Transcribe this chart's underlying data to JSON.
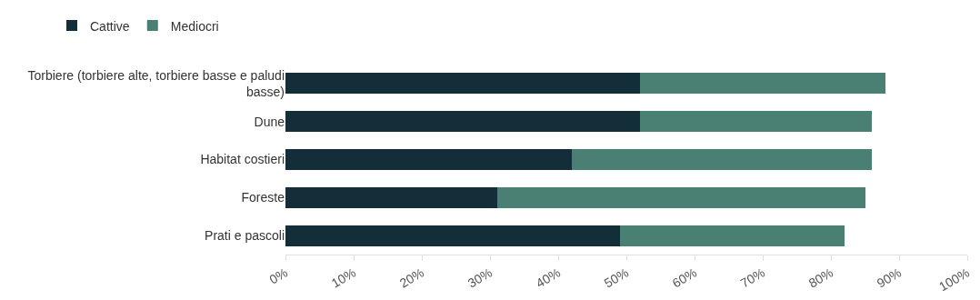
{
  "chart_data": {
    "type": "bar",
    "orientation": "horizontal",
    "stacked": true,
    "legend": "top left",
    "grid": false,
    "categories": [
      "Torbiere (torbiere alte, torbiere basse e paludi basse)",
      "Dune",
      "Habitat costieri",
      "Foreste",
      "Prati e pascoli"
    ],
    "series": [
      {
        "name": "Cattive",
        "color": "#132e38",
        "values": [
          52,
          52,
          42,
          31,
          49
        ]
      },
      {
        "name": "Mediocri",
        "color": "#4a7f74",
        "values": [
          36,
          34,
          44,
          54,
          33
        ]
      }
    ],
    "xlim": [
      0,
      100
    ],
    "xticks": [
      {
        "value": 0,
        "label": "0%"
      },
      {
        "value": 10,
        "label": "10%"
      },
      {
        "value": 20,
        "label": "20%"
      },
      {
        "value": 30,
        "label": "30%"
      },
      {
        "value": 40,
        "label": "40%"
      },
      {
        "value": 50,
        "label": "50%"
      },
      {
        "value": 60,
        "label": "60%"
      },
      {
        "value": 70,
        "label": "70%"
      },
      {
        "value": 80,
        "label": "80%"
      },
      {
        "value": 90,
        "label": "90%"
      },
      {
        "value": 100,
        "label": "100%"
      }
    ]
  }
}
